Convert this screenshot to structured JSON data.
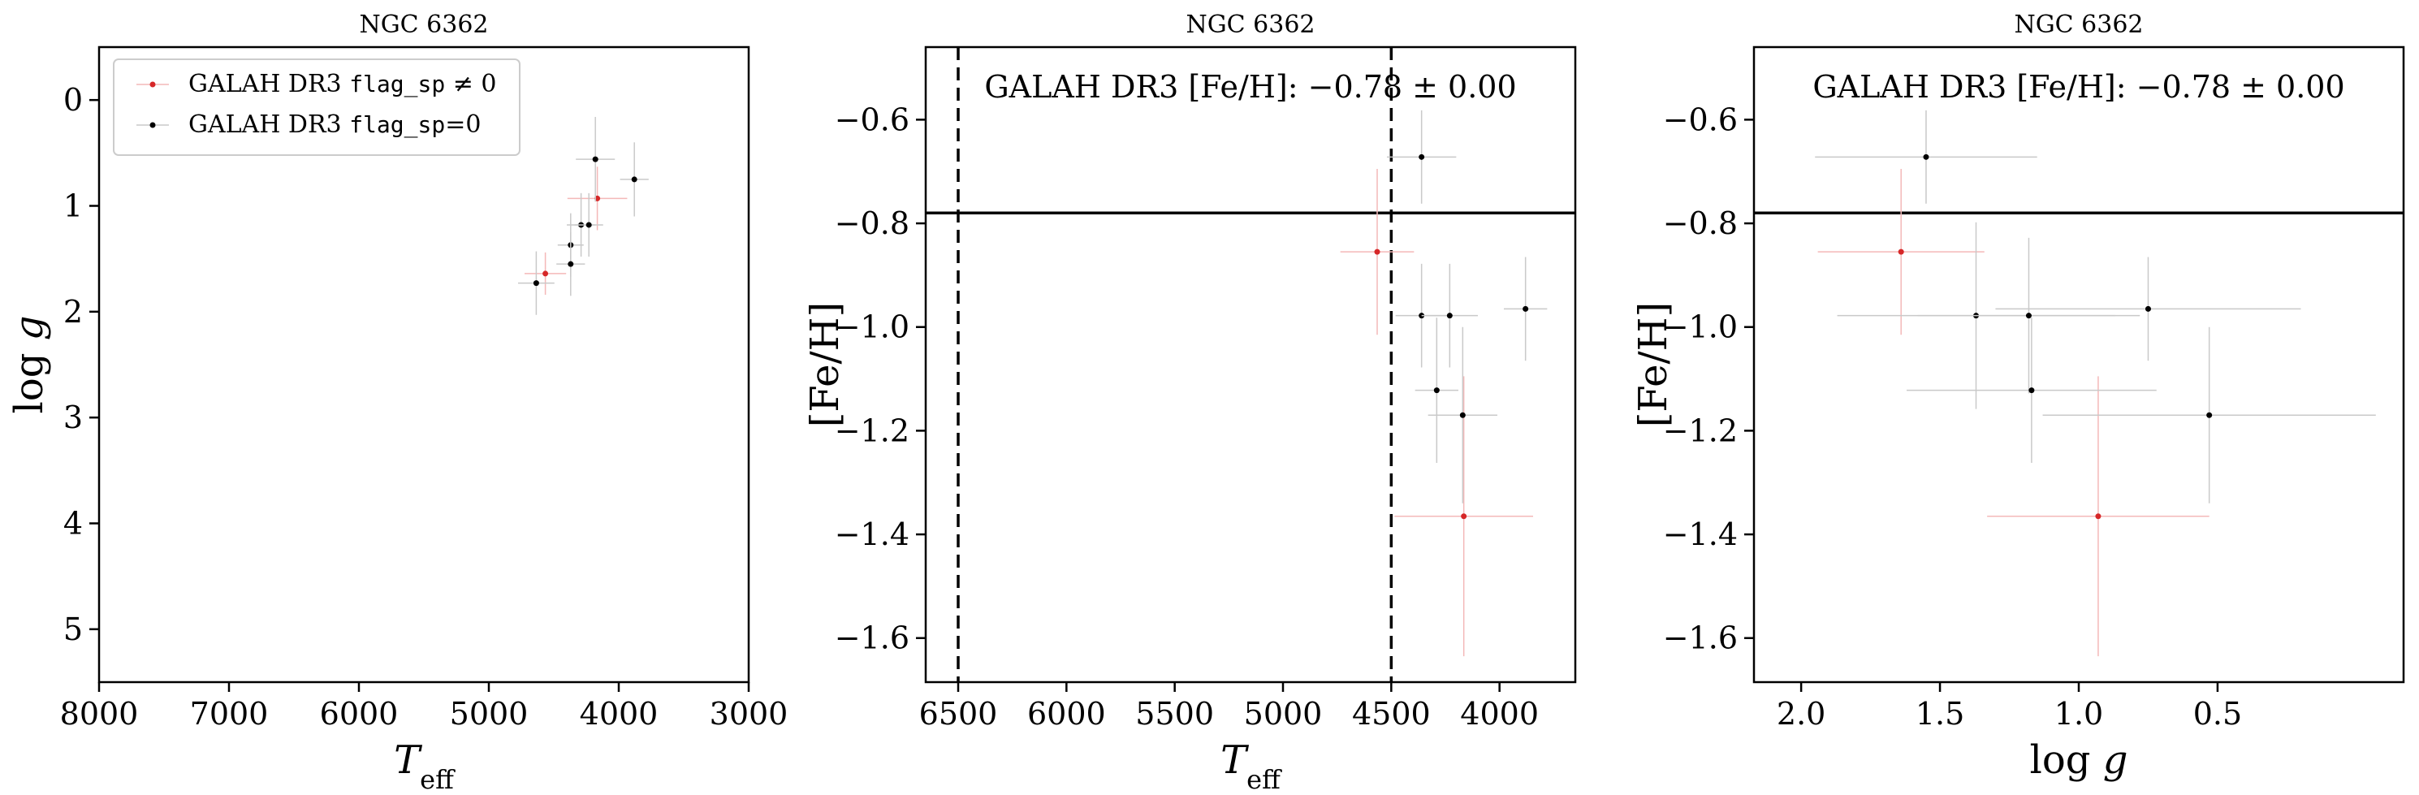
{
  "chart_data": [
    {
      "id": "hrd",
      "type": "scatter",
      "title": "NGC 6362",
      "xlabel": "T_eff",
      "ylabel": "log g",
      "xlim": [
        8000,
        3000
      ],
      "ylim": [
        5.5,
        -0.5
      ],
      "xticks": [
        8000,
        7000,
        6000,
        5000,
        4000,
        3000
      ],
      "yticks": [
        0,
        1,
        2,
        3,
        4,
        5
      ],
      "legend": {
        "placement": "top-left",
        "entries": [
          {
            "label_prefix": "GALAH DR3",
            "label_mono": "flag_sp",
            "label_suffix": "≠ 0",
            "color": "#d62728"
          },
          {
            "label_prefix": "GALAH DR3",
            "label_mono": "flag_sp",
            "label_suffix": "=0",
            "color": "#000000"
          }
        ]
      },
      "series": [
        {
          "name": "GALAH DR3 flag_sp ≠ 0",
          "color": "#d62728",
          "points": [
            {
              "x": 4565,
              "y": 1.64,
              "xerr": 160,
              "yerr": 0.2
            },
            {
              "x": 4165,
              "y": 0.93,
              "xerr": 230,
              "yerr": 0.3
            }
          ]
        },
        {
          "name": "GALAH DR3 flag_sp=0",
          "color": "#000000",
          "points": [
            {
              "x": 4180,
              "y": 0.56,
              "xerr": 150,
              "yerr": 0.4
            },
            {
              "x": 3880,
              "y": 0.75,
              "xerr": 110,
              "yerr": 0.35
            },
            {
              "x": 4290,
              "y": 1.18,
              "xerr": 110,
              "yerr": 0.3
            },
            {
              "x": 4230,
              "y": 1.18,
              "xerr": 110,
              "yerr": 0.3
            },
            {
              "x": 4370,
              "y": 1.37,
              "xerr": 100,
              "yerr": 0.3
            },
            {
              "x": 4370,
              "y": 1.55,
              "xerr": 110,
              "yerr": 0.3
            },
            {
              "x": 4635,
              "y": 1.73,
              "xerr": 140,
              "yerr": 0.3
            }
          ]
        }
      ]
    },
    {
      "id": "feh_teff",
      "type": "scatter",
      "title": "NGC 6362",
      "xlabel": "T_eff",
      "ylabel": "[Fe/H]",
      "xlim": [
        6650,
        3650
      ],
      "ylim": [
        -1.685,
        -0.46
      ],
      "xticks": [
        6500,
        6000,
        5500,
        5000,
        4500,
        4000
      ],
      "yticks": [
        -1.6,
        -1.4,
        -1.2,
        -1.0,
        -0.8,
        -0.6
      ],
      "annotation": "GALAH DR3 [Fe/H]: −0.78 ± 0.00",
      "hline": -0.78,
      "vlines": [
        6500,
        4500
      ],
      "series": [
        {
          "name": "GALAH DR3 flag_sp ≠ 0",
          "color": "#d62728",
          "points": [
            {
              "x": 4565,
              "y": -0.855,
              "xerr": 170,
              "yerr": 0.16
            },
            {
              "x": 4165,
              "y": -1.365,
              "xerr": 320,
              "yerr": 0.27
            }
          ]
        },
        {
          "name": "GALAH DR3 flag_sp=0",
          "color": "#000000",
          "points": [
            {
              "x": 4360,
              "y": -0.672,
              "xerr": 160,
              "yerr": 0.09
            },
            {
              "x": 4360,
              "y": -0.978,
              "xerr": 120,
              "yerr": 0.1
            },
            {
              "x": 4230,
              "y": -0.978,
              "xerr": 130,
              "yerr": 0.1
            },
            {
              "x": 3880,
              "y": -0.965,
              "xerr": 100,
              "yerr": 0.1
            },
            {
              "x": 4290,
              "y": -1.122,
              "xerr": 100,
              "yerr": 0.14
            },
            {
              "x": 4170,
              "y": -1.17,
              "xerr": 160,
              "yerr": 0.17
            }
          ]
        }
      ]
    },
    {
      "id": "feh_logg",
      "type": "scatter",
      "title": "NGC 6362",
      "xlabel": "log g",
      "ylabel": "[Fe/H]",
      "xlim": [
        2.17,
        -0.17
      ],
      "ylim": [
        -1.685,
        -0.46
      ],
      "xticks": [
        2.0,
        1.5,
        1.0,
        0.5
      ],
      "yticks": [
        -1.6,
        -1.4,
        -1.2,
        -1.0,
        -0.8,
        -0.6
      ],
      "annotation": "GALAH DR3 [Fe/H]: −0.78 ± 0.00",
      "hline": -0.78,
      "series": [
        {
          "name": "GALAH DR3 flag_sp ≠ 0",
          "color": "#d62728",
          "points": [
            {
              "x": 1.64,
              "y": -0.855,
              "xerr": 0.3,
              "yerr": 0.16
            },
            {
              "x": 0.93,
              "y": -1.365,
              "xerr": 0.4,
              "yerr": 0.27
            }
          ]
        },
        {
          "name": "GALAH DR3 flag_sp=0",
          "color": "#000000",
          "points": [
            {
              "x": 1.55,
              "y": -0.672,
              "xerr": 0.4,
              "yerr": 0.09
            },
            {
              "x": 1.37,
              "y": -0.978,
              "xerr": 0.5,
              "yerr": 0.18
            },
            {
              "x": 1.18,
              "y": -0.978,
              "xerr": 0.4,
              "yerr": 0.15
            },
            {
              "x": 0.75,
              "y": -0.965,
              "xerr": 0.55,
              "yerr": 0.1
            },
            {
              "x": 1.17,
              "y": -1.122,
              "xerr": 0.45,
              "yerr": 0.14
            },
            {
              "x": 0.53,
              "y": -1.17,
              "xerr": 0.6,
              "yerr": 0.17
            }
          ]
        }
      ]
    }
  ]
}
